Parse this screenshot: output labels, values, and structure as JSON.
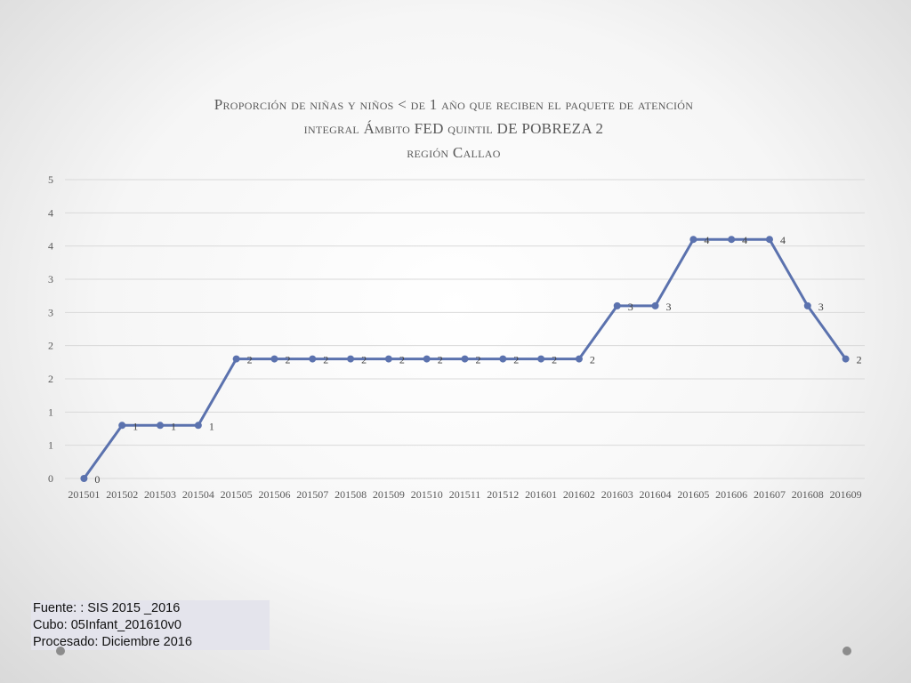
{
  "title": {
    "line1": "Proporción de niñas y niños < de 1 año que reciben el paquete de atención",
    "line2": "integral Ámbito FED quintil DE POBREZA  2",
    "line3": "región Callao"
  },
  "chart_data": {
    "type": "line",
    "categories": [
      "201501",
      "201502",
      "201503",
      "201504",
      "201505",
      "201506",
      "201507",
      "201508",
      "201509",
      "201510",
      "201511",
      "201512",
      "201601",
      "201602",
      "201603",
      "201604",
      "201605",
      "201606",
      "201607",
      "201608",
      "201609"
    ],
    "values": [
      0,
      0.8,
      0.8,
      0.8,
      1.8,
      1.8,
      1.8,
      1.8,
      1.8,
      1.8,
      1.8,
      1.8,
      1.8,
      1.8,
      2.6,
      2.6,
      3.6,
      3.6,
      3.6,
      2.6,
      1.8
    ],
    "data_labels": [
      "0",
      "1",
      "1",
      "1",
      "2",
      "2",
      "2",
      "2",
      "2",
      "2",
      "2",
      "2",
      "2",
      "2",
      "3",
      "3",
      "4",
      "4",
      "4",
      "3",
      "2"
    ],
    "ylim": [
      0,
      4.5
    ],
    "y_ticks": [
      0,
      0.5,
      1,
      1.5,
      2,
      2.5,
      3,
      3.5,
      4,
      4.5
    ],
    "y_tick_labels": [
      "0",
      "1",
      "1",
      "2",
      "2",
      "3",
      "3",
      "4",
      "4",
      "5"
    ],
    "grid": true,
    "line_color": "#5b72ae"
  },
  "source": {
    "line1": "Fuente: : SIS 2015 _2016",
    "line2": "Cubo: 05Infant_201610v0",
    "line3": "Procesado: Diciembre 2016"
  }
}
